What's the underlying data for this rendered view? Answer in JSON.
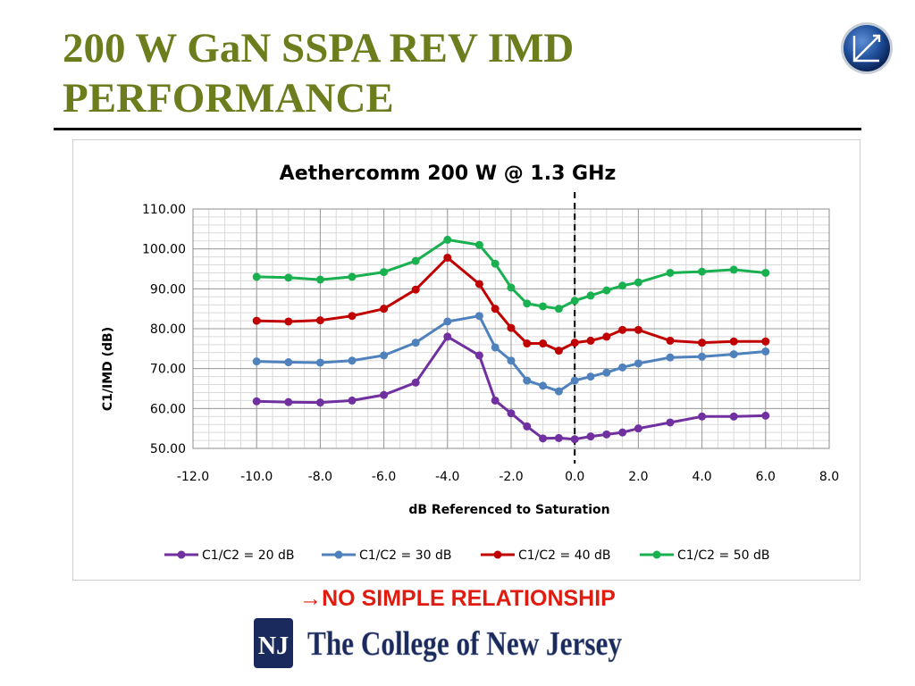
{
  "slide": {
    "title_line1": "200 W GaN SSPA REV IMD",
    "title_line2": "PERFORMANCE",
    "caption_arrow": "→",
    "caption": "NO SIMPLE RELATIONSHIP",
    "logo_mark": "NJ",
    "logo_text": "The College of New Jersey",
    "colors": {
      "title": "#6b7d1c",
      "caption": "#e01b10",
      "logo": "#1a2a5c"
    }
  },
  "chart_data": {
    "type": "line",
    "title": "Aethercomm 200 W @ 1.3 GHz",
    "xlabel": "dB Referenced to Saturation",
    "ylabel": "C1/IMD (dB)",
    "xlim": [
      -12,
      8
    ],
    "ylim": [
      50,
      110
    ],
    "x_ticks": [
      -12,
      -10,
      -8,
      -6,
      -4,
      -2,
      0,
      2,
      4,
      6,
      8
    ],
    "x_tick_labels": [
      "-12.0",
      "-10.0",
      "-8.0",
      "-6.0",
      "-4.0",
      "-2.0",
      "0.0",
      "2.0",
      "4.0",
      "6.0",
      "8.0"
    ],
    "y_ticks": [
      50,
      60,
      70,
      80,
      90,
      100,
      110
    ],
    "y_tick_labels": [
      "50.00",
      "60.00",
      "70.00",
      "80.00",
      "90.00",
      "100.00",
      "110.00"
    ],
    "minor_grid": {
      "x_step": 0.5,
      "y_step": 2
    },
    "reference_line": {
      "x": 0,
      "style": "dashed"
    },
    "legend_position": "bottom",
    "series": [
      {
        "name": "C1/C2 = 20 dB",
        "color": "#7030a0",
        "points": [
          [
            -10,
            61.8
          ],
          [
            -9,
            61.6
          ],
          [
            -8,
            61.5
          ],
          [
            -7,
            62
          ],
          [
            -6,
            63.4
          ],
          [
            -5,
            66.5
          ],
          [
            -4,
            78
          ],
          [
            -3,
            73.3
          ],
          [
            -2.5,
            62
          ],
          [
            -2,
            58.8
          ],
          [
            -1.5,
            55.5
          ],
          [
            -1,
            52.5
          ],
          [
            -0.5,
            52.6
          ],
          [
            0,
            52.3
          ],
          [
            0.5,
            53
          ],
          [
            1,
            53.5
          ],
          [
            1.5,
            54
          ],
          [
            2,
            55
          ],
          [
            3,
            56.5
          ],
          [
            4,
            58
          ],
          [
            5,
            58
          ],
          [
            6,
            58.2
          ]
        ]
      },
      {
        "name": "C1/C2 = 30 dB",
        "color": "#4f81bd",
        "points": [
          [
            -10,
            71.8
          ],
          [
            -9,
            71.6
          ],
          [
            -8,
            71.5
          ],
          [
            -7,
            72
          ],
          [
            -6,
            73.3
          ],
          [
            -5,
            76.5
          ],
          [
            -4,
            81.8
          ],
          [
            -3,
            83.2
          ],
          [
            -2.5,
            75.3
          ],
          [
            -2,
            72
          ],
          [
            -1.5,
            67
          ],
          [
            -1,
            65.7
          ],
          [
            -0.5,
            64.3
          ],
          [
            0,
            67
          ],
          [
            0.5,
            68
          ],
          [
            1,
            69
          ],
          [
            1.5,
            70.3
          ],
          [
            2,
            71.3
          ],
          [
            3,
            72.8
          ],
          [
            4,
            73
          ],
          [
            5,
            73.6
          ],
          [
            6,
            74.3
          ]
        ]
      },
      {
        "name": "C1/C2 = 40 dB",
        "color": "#c00000",
        "points": [
          [
            -10,
            82
          ],
          [
            -9,
            81.8
          ],
          [
            -8,
            82.1
          ],
          [
            -7,
            83.2
          ],
          [
            -6,
            85
          ],
          [
            -5,
            89.8
          ],
          [
            -4,
            97.8
          ],
          [
            -3,
            91.2
          ],
          [
            -2.5,
            85
          ],
          [
            -2,
            80.2
          ],
          [
            -1.5,
            76.3
          ],
          [
            -1,
            76.3
          ],
          [
            -0.5,
            74.5
          ],
          [
            0,
            76.5
          ],
          [
            0.5,
            77
          ],
          [
            1,
            78
          ],
          [
            1.5,
            79.7
          ],
          [
            2,
            79.7
          ],
          [
            3,
            77
          ],
          [
            4,
            76.5
          ],
          [
            5,
            76.8
          ],
          [
            6,
            76.8
          ]
        ]
      },
      {
        "name": "C1/C2 = 50 dB",
        "color": "#19b050",
        "points": [
          [
            -10,
            93
          ],
          [
            -9,
            92.8
          ],
          [
            -8,
            92.3
          ],
          [
            -7,
            93
          ],
          [
            -6,
            94.2
          ],
          [
            -5,
            97
          ],
          [
            -4,
            102.3
          ],
          [
            -3,
            101
          ],
          [
            -2.5,
            96.3
          ],
          [
            -2,
            90.3
          ],
          [
            -1.5,
            86.3
          ],
          [
            -1,
            85.6
          ],
          [
            -0.5,
            85
          ],
          [
            0,
            87
          ],
          [
            0.5,
            88.3
          ],
          [
            1,
            89.6
          ],
          [
            1.5,
            90.8
          ],
          [
            2,
            91.6
          ],
          [
            3,
            94
          ],
          [
            4,
            94.3
          ],
          [
            5,
            94.8
          ],
          [
            6,
            94
          ]
        ]
      }
    ]
  }
}
